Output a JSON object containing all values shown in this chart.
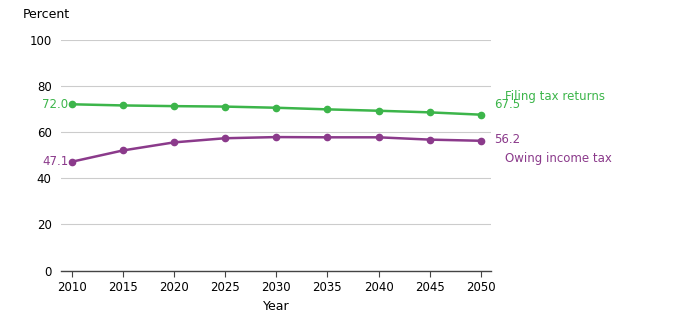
{
  "years": [
    2010,
    2015,
    2020,
    2025,
    2030,
    2035,
    2040,
    2045,
    2050
  ],
  "filing_tax_returns": [
    72.0,
    71.5,
    71.2,
    71.0,
    70.5,
    69.8,
    69.2,
    68.5,
    67.5
  ],
  "owing_income_tax": [
    47.1,
    52.0,
    55.5,
    57.3,
    57.8,
    57.7,
    57.7,
    56.7,
    56.2
  ],
  "filing_color": "#3cb54a",
  "owing_color": "#8b3a8b",
  "filing_label": "Filing tax returns",
  "owing_label": "Owing income tax",
  "filing_start_label": "72.0",
  "filing_end_label": "67.5",
  "owing_start_label": "47.1",
  "owing_end_label": "56.2",
  "xlabel": "Year",
  "ylabel": "Percent",
  "ylim": [
    0,
    100
  ],
  "xlim": [
    2009,
    2051
  ],
  "yticks": [
    0,
    20,
    40,
    60,
    80,
    100
  ],
  "xticks": [
    2010,
    2015,
    2020,
    2025,
    2030,
    2035,
    2040,
    2045,
    2050
  ],
  "background_color": "#ffffff",
  "grid_color": "#cccccc"
}
